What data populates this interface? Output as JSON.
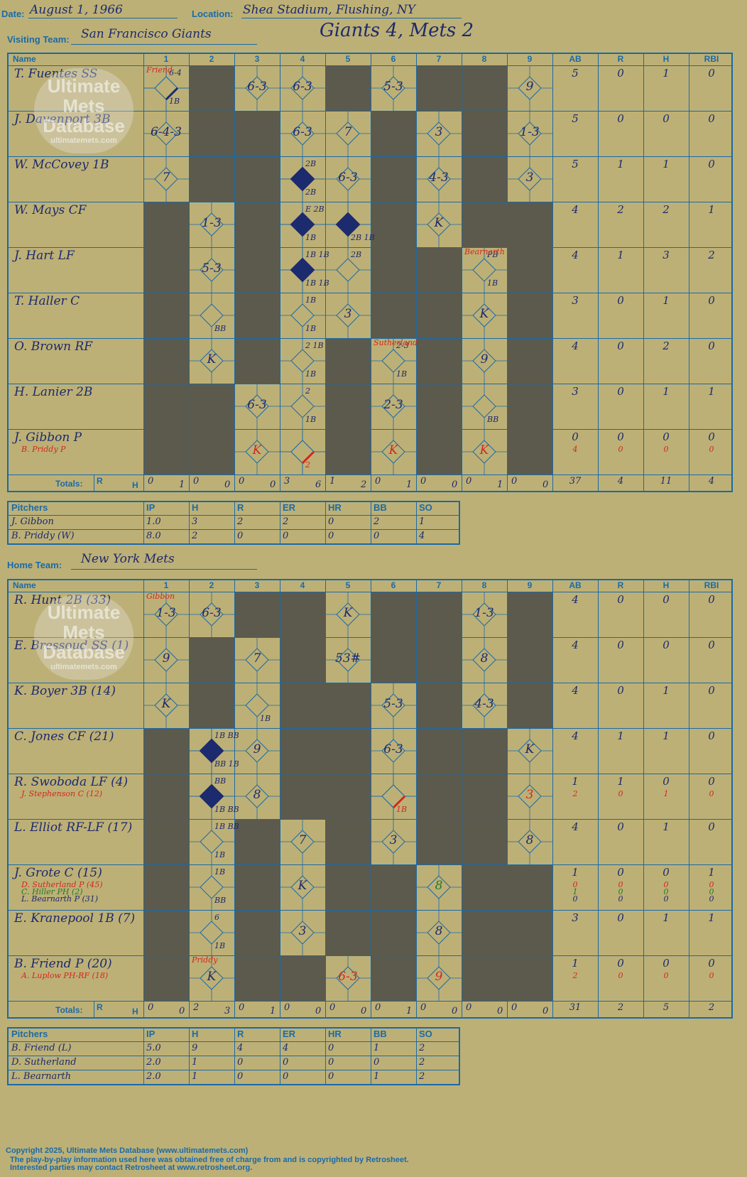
{
  "header": {
    "date_label": "Date:",
    "date": "August 1, 1966",
    "location_label": "Location:",
    "location": "Shea Stadium, Flushing, NY",
    "visiting_label": "Visiting Team:",
    "visiting_team": "San Francisco Giants",
    "headline": "Giants 4, Mets 2",
    "home_label": "Home Team:",
    "home_team": "New York Mets"
  },
  "columns": {
    "name": "Name",
    "innings": [
      "1",
      "2",
      "3",
      "4",
      "5",
      "6",
      "7",
      "8",
      "9"
    ],
    "stats": [
      "AB",
      "R",
      "H",
      "RBI"
    ],
    "totals_label": "Totals:",
    "r": "R",
    "h": "H"
  },
  "watermark": {
    "line1": "Ultimate",
    "line2": "Mets",
    "line3": "Database",
    "line4": "ultimatemets.com"
  },
  "visitors": {
    "rows": [
      {
        "name": "T. Fuentes SS",
        "subs": [],
        "stats": [
          "5",
          "0",
          "1",
          "0"
        ],
        "sub_stats": []
      },
      {
        "name": "J. Davenport 3B",
        "subs": [],
        "stats": [
          "5",
          "0",
          "0",
          "0"
        ],
        "sub_stats": []
      },
      {
        "name": "W. McCovey 1B",
        "subs": [],
        "stats": [
          "5",
          "1",
          "1",
          "0"
        ],
        "sub_stats": []
      },
      {
        "name": "W. Mays CF",
        "subs": [],
        "stats": [
          "4",
          "2",
          "2",
          "1"
        ],
        "sub_stats": []
      },
      {
        "name": "J. Hart LF",
        "subs": [],
        "stats": [
          "4",
          "1",
          "3",
          "2"
        ],
        "sub_stats": []
      },
      {
        "name": "T. Haller C",
        "subs": [],
        "stats": [
          "3",
          "0",
          "1",
          "0"
        ],
        "sub_stats": []
      },
      {
        "name": "O. Brown RF",
        "subs": [],
        "stats": [
          "4",
          "0",
          "2",
          "0"
        ],
        "sub_stats": []
      },
      {
        "name": "H. Lanier 2B",
        "subs": [],
        "stats": [
          "3",
          "0",
          "1",
          "1"
        ],
        "sub_stats": []
      },
      {
        "name": "J. Gibbon P",
        "subs": [
          {
            "name": "B. Priddy P",
            "color": "#d2281e"
          }
        ],
        "stats": [
          "0",
          "0",
          "0",
          "0"
        ],
        "sub_stats": [
          [
            "4",
            "0",
            "0",
            "0"
          ]
        ]
      }
    ],
    "totals": [
      [
        "0",
        "1"
      ],
      [
        "0",
        "0"
      ],
      [
        "0",
        "0"
      ],
      [
        "3",
        "6"
      ],
      [
        "1",
        "2"
      ],
      [
        "0",
        "1"
      ],
      [
        "0",
        "0"
      ],
      [
        "0",
        "1"
      ],
      [
        "0",
        "0"
      ]
    ],
    "totals_stats": [
      "37",
      "4",
      "11",
      "4"
    ],
    "pitchers_header": [
      "Pitchers",
      "IP",
      "H",
      "R",
      "ER",
      "HR",
      "BB",
      "SO"
    ],
    "pitchers": [
      [
        "J. Gibbon",
        "1.0",
        "3",
        "2",
        "2",
        "0",
        "2",
        "1"
      ],
      [
        "B. Priddy (W)",
        "8.0",
        "2",
        "0",
        "0",
        "0",
        "0",
        "4"
      ]
    ]
  },
  "home": {
    "rows": [
      {
        "name": "R. Hunt 2B (33)",
        "subs": [],
        "stats": [
          "4",
          "0",
          "0",
          "0"
        ],
        "sub_stats": []
      },
      {
        "name": "E. Bressoud SS (1)",
        "subs": [],
        "stats": [
          "4",
          "0",
          "0",
          "0"
        ],
        "sub_stats": []
      },
      {
        "name": "K. Boyer 3B (14)",
        "subs": [],
        "stats": [
          "4",
          "0",
          "1",
          "0"
        ],
        "sub_stats": []
      },
      {
        "name": "C. Jones CF (21)",
        "subs": [],
        "stats": [
          "4",
          "1",
          "1",
          "0"
        ],
        "sub_stats": []
      },
      {
        "name": "R. Swoboda LF (4)",
        "subs": [
          {
            "name": "J. Stephenson C (12)",
            "color": "#d2281e"
          }
        ],
        "stats": [
          "1",
          "1",
          "0",
          "0"
        ],
        "sub_stats": [
          [
            "2",
            "0",
            "1",
            "0"
          ]
        ]
      },
      {
        "name": "L. Elliot RF-LF (17)",
        "subs": [],
        "stats": [
          "4",
          "0",
          "1",
          "0"
        ],
        "sub_stats": []
      },
      {
        "name": "J. Grote C (15)",
        "subs": [
          {
            "name": "D. Sutherland P (45)",
            "color": "#d2281e"
          },
          {
            "name": "C. Hiller PH (2)",
            "color": "#1f7a2a"
          },
          {
            "name": "L. Bearnarth P (31)",
            "color": "#1c2a6e"
          }
        ],
        "stats": [
          "1",
          "0",
          "0",
          "1"
        ],
        "sub_stats": [
          [
            "0",
            "0",
            "0",
            "0"
          ],
          [
            "1",
            "0",
            "0",
            "0"
          ],
          [
            "0",
            "0",
            "0",
            "0"
          ]
        ]
      },
      {
        "name": "E. Kranepool 1B (7)",
        "subs": [],
        "stats": [
          "3",
          "0",
          "1",
          "1"
        ],
        "sub_stats": []
      },
      {
        "name": "B. Friend P (20)",
        "subs": [
          {
            "name": "A. Luplow PH-RF (18)",
            "color": "#d2281e"
          }
        ],
        "stats": [
          "1",
          "0",
          "0",
          "0"
        ],
        "sub_stats": [
          [
            "2",
            "0",
            "0",
            "0"
          ]
        ]
      }
    ],
    "totals": [
      [
        "0",
        "0"
      ],
      [
        "2",
        "3"
      ],
      [
        "0",
        "1"
      ],
      [
        "0",
        "0"
      ],
      [
        "0",
        "0"
      ],
      [
        "0",
        "1"
      ],
      [
        "0",
        "0"
      ],
      [
        "0",
        "0"
      ],
      [
        "0",
        "0"
      ]
    ],
    "totals_stats": [
      "31",
      "2",
      "5",
      "2"
    ],
    "pitchers_header": [
      "Pitchers",
      "IP",
      "H",
      "R",
      "ER",
      "HR",
      "BB",
      "SO"
    ],
    "pitchers": [
      [
        "B. Friend (L)",
        "5.0",
        "9",
        "4",
        "4",
        "0",
        "1",
        "2"
      ],
      [
        "D. Sutherland",
        "2.0",
        "1",
        "0",
        "0",
        "0",
        "0",
        "2"
      ],
      [
        "L. Bearnarth",
        "2.0",
        "1",
        "0",
        "0",
        "0",
        "1",
        "2"
      ]
    ]
  },
  "plays_visitors": [
    {
      "r": 0,
      "c": 0,
      "t": "",
      "n": "6-4",
      "nb": "1B",
      "line": true,
      "note": "Friend"
    },
    {
      "r": 0,
      "c": 2,
      "t": "6-3"
    },
    {
      "r": 0,
      "c": 3,
      "t": "6-3"
    },
    {
      "r": 0,
      "c": 5,
      "t": "5-3"
    },
    {
      "r": 0,
      "c": 8,
      "t": "9"
    },
    {
      "r": 1,
      "c": 0,
      "t": "6-4-3"
    },
    {
      "r": 1,
      "c": 3,
      "t": "6-3"
    },
    {
      "r": 1,
      "c": 4,
      "t": "7"
    },
    {
      "r": 1,
      "c": 6,
      "t": "3"
    },
    {
      "r": 1,
      "c": 8,
      "t": "1-3"
    },
    {
      "r": 2,
      "c": 0,
      "t": "7"
    },
    {
      "r": 2,
      "c": 3,
      "t": "",
      "run": true,
      "n": "2B",
      "nb": "2B"
    },
    {
      "r": 2,
      "c": 4,
      "t": "6-3"
    },
    {
      "r": 2,
      "c": 6,
      "t": "4-3"
    },
    {
      "r": 2,
      "c": 8,
      "t": "3"
    },
    {
      "r": 3,
      "c": 1,
      "t": "1-3"
    },
    {
      "r": 3,
      "c": 3,
      "t": "",
      "run": true,
      "n": "E 2B",
      "nb": "1B"
    },
    {
      "r": 3,
      "c": 4,
      "t": "",
      "run": true,
      "nb": "2B 1B"
    },
    {
      "r": 3,
      "c": 6,
      "t": "K"
    },
    {
      "r": 4,
      "c": 1,
      "t": "5-3"
    },
    {
      "r": 4,
      "c": 3,
      "t": "",
      "run": true,
      "n": "1B 1B",
      "nb": "1B 1B"
    },
    {
      "r": 4,
      "c": 4,
      "t": "",
      "n": "2B"
    },
    {
      "r": 4,
      "c": 7,
      "t": "",
      "n": "PB",
      "nb": "1B",
      "note": "Bearnarth"
    },
    {
      "r": 5,
      "c": 1,
      "t": "",
      "nb": "BB"
    },
    {
      "r": 5,
      "c": 3,
      "t": "",
      "n": "1B",
      "nb": "1B"
    },
    {
      "r": 5,
      "c": 4,
      "t": "3"
    },
    {
      "r": 5,
      "c": 7,
      "t": "K"
    },
    {
      "r": 6,
      "c": 1,
      "t": "K"
    },
    {
      "r": 6,
      "c": 3,
      "t": "",
      "n": "2 1B",
      "nb": "1B"
    },
    {
      "r": 6,
      "c": 5,
      "t": "",
      "n": "2-3",
      "nb": "1B",
      "note": "Sutherland"
    },
    {
      "r": 6,
      "c": 7,
      "t": "9"
    },
    {
      "r": 7,
      "c": 2,
      "t": "6-3"
    },
    {
      "r": 7,
      "c": 3,
      "t": "",
      "n": "2",
      "nb": "1B"
    },
    {
      "r": 7,
      "c": 5,
      "t": "2-3"
    },
    {
      "r": 7,
      "c": 7,
      "t": "",
      "nb": "BB"
    },
    {
      "r": 8,
      "c": 2,
      "t": "K",
      "red": true
    },
    {
      "r": 8,
      "c": 3,
      "t": "",
      "nb": "2",
      "red": true
    },
    {
      "r": 8,
      "c": 5,
      "t": "K",
      "red": true
    },
    {
      "r": 8,
      "c": 7,
      "t": "K",
      "red": true
    }
  ],
  "plays_home": [
    {
      "r": 0,
      "c": 0,
      "t": "1-3",
      "note": "Gibbon"
    },
    {
      "r": 0,
      "c": 1,
      "t": "6-3"
    },
    {
      "r": 0,
      "c": 4,
      "t": "K"
    },
    {
      "r": 0,
      "c": 7,
      "t": "1-3"
    },
    {
      "r": 1,
      "c": 0,
      "t": "9"
    },
    {
      "r": 1,
      "c": 2,
      "t": "7"
    },
    {
      "r": 1,
      "c": 4,
      "t": "53#"
    },
    {
      "r": 1,
      "c": 7,
      "t": "8"
    },
    {
      "r": 2,
      "c": 0,
      "t": "K"
    },
    {
      "r": 2,
      "c": 2,
      "t": "",
      "nb": "1B"
    },
    {
      "r": 2,
      "c": 5,
      "t": "5-3"
    },
    {
      "r": 2,
      "c": 7,
      "t": "4-3"
    },
    {
      "r": 3,
      "c": 1,
      "t": "",
      "run": true,
      "n": "1B BB",
      "nb": "BB 1B"
    },
    {
      "r": 3,
      "c": 2,
      "t": "9"
    },
    {
      "r": 3,
      "c": 5,
      "t": "6-3"
    },
    {
      "r": 3,
      "c": 8,
      "t": "K"
    },
    {
      "r": 4,
      "c": 1,
      "t": "",
      "run": true,
      "n": "BB",
      "nb": "1B BB"
    },
    {
      "r": 4,
      "c": 2,
      "t": "8"
    },
    {
      "r": 4,
      "c": 5,
      "t": "",
      "nb": "1B",
      "red": true
    },
    {
      "r": 4,
      "c": 8,
      "t": "3",
      "red": true
    },
    {
      "r": 5,
      "c": 1,
      "t": "",
      "n": "1B BB",
      "nb": "1B"
    },
    {
      "r": 5,
      "c": 3,
      "t": "7"
    },
    {
      "r": 5,
      "c": 5,
      "t": "3"
    },
    {
      "r": 5,
      "c": 8,
      "t": "8"
    },
    {
      "r": 6,
      "c": 1,
      "t": "",
      "n": "1B",
      "nb": "BB"
    },
    {
      "r": 6,
      "c": 3,
      "t": "K"
    },
    {
      "r": 6,
      "c": 6,
      "t": "8",
      "green": true
    },
    {
      "r": 7,
      "c": 1,
      "t": "",
      "n": "6",
      "nb": "1B"
    },
    {
      "r": 7,
      "c": 3,
      "t": "3"
    },
    {
      "r": 7,
      "c": 6,
      "t": "8"
    },
    {
      "r": 8,
      "c": 1,
      "t": "K",
      "note": "Priddy"
    },
    {
      "r": 8,
      "c": 4,
      "t": "6-3",
      "red": true
    },
    {
      "r": 8,
      "c": 6,
      "t": "9",
      "red": true
    }
  ],
  "footer": {
    "line1": "Copyright 2025, Ultimate Mets Database (www.ultimatemets.com)",
    "line2": "The play-by-play information used here was obtained free of charge from and is copyrighted by Retrosheet.",
    "line3": "Interested parties may contact Retrosheet at www.retrosheet.org."
  }
}
